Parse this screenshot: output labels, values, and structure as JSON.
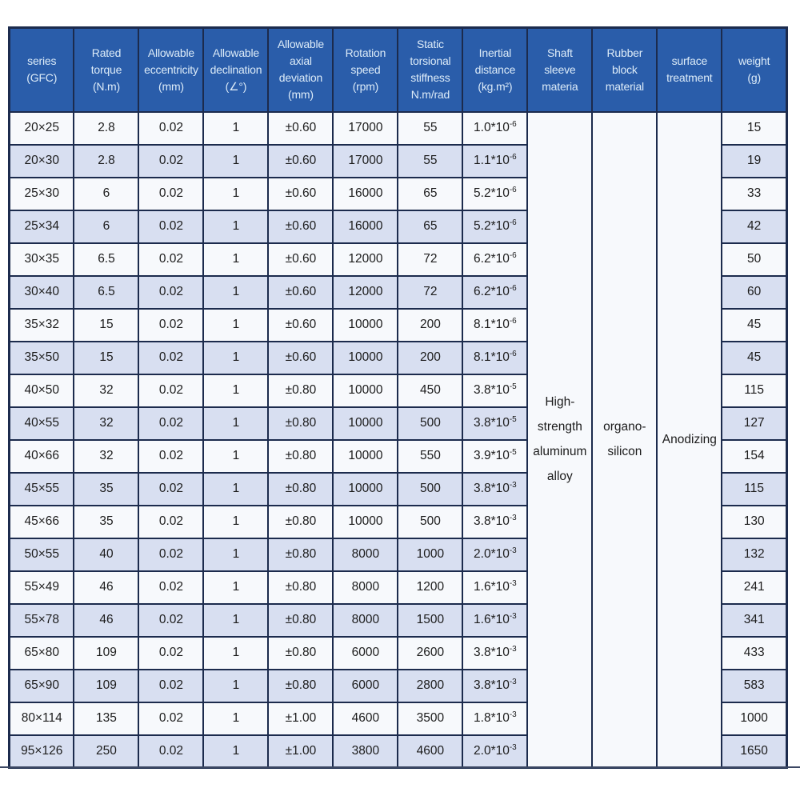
{
  "colors": {
    "header_bg": "#2a5daa",
    "border": "#1c2b4d",
    "row_odd": "#f7f9fc",
    "row_even": "#d8dff1",
    "header_text": "#dcebf8",
    "body_text": "#1c1c1c"
  },
  "table": {
    "headers": [
      {
        "id": "series",
        "lines": [
          "series",
          "(GFC)"
        ]
      },
      {
        "id": "rated-torque",
        "lines": [
          "Rated",
          "torque",
          "(N.m)"
        ]
      },
      {
        "id": "allowable-eccentricity",
        "lines": [
          "Allowable",
          "eccentricity",
          "(mm)"
        ]
      },
      {
        "id": "allowable-declination",
        "lines": [
          "Allowable",
          "declination",
          "(∠°)"
        ]
      },
      {
        "id": "allowable-axial-deviation",
        "lines": [
          "Allowable",
          "axial",
          "deviation",
          "(mm)"
        ]
      },
      {
        "id": "rotation-speed",
        "lines": [
          "Rotation",
          "speed",
          "(rpm)"
        ]
      },
      {
        "id": "static-torsional-stiffness",
        "lines": [
          "Static",
          "torsional",
          "stiffness",
          "N.m/rad"
        ]
      },
      {
        "id": "inertial-distance",
        "lines": [
          "Inertial",
          "distance",
          "(kg.m²)"
        ]
      },
      {
        "id": "shaft-sleeve-material",
        "lines": [
          "Shaft",
          "sleeve",
          "materia"
        ]
      },
      {
        "id": "rubber-block-material",
        "lines": [
          "Rubber",
          "block",
          "material"
        ]
      },
      {
        "id": "surface-treatment",
        "lines": [
          "surface",
          "treatment"
        ]
      },
      {
        "id": "weight",
        "lines": [
          "weight",
          "(g)"
        ]
      }
    ],
    "merged": {
      "shaft_sleeve": [
        "High-",
        "strength",
        "aluminum",
        "alloy"
      ],
      "rubber_block": [
        "organo-",
        "silicon"
      ],
      "surface_treatment": [
        "Anodizing"
      ]
    },
    "rows": [
      {
        "series": "20×25",
        "torque": "2.8",
        "eccentricity": "0.02",
        "declination": "1",
        "axial": "±0.60",
        "speed": "17000",
        "stiffness": "55",
        "inertia_base": "1.0*10",
        "inertia_exp": "-6",
        "weight": "15"
      },
      {
        "series": "20×30",
        "torque": "2.8",
        "eccentricity": "0.02",
        "declination": "1",
        "axial": "±0.60",
        "speed": "17000",
        "stiffness": "55",
        "inertia_base": "1.1*10",
        "inertia_exp": "-6",
        "weight": "19"
      },
      {
        "series": "25×30",
        "torque": "6",
        "eccentricity": "0.02",
        "declination": "1",
        "axial": "±0.60",
        "speed": "16000",
        "stiffness": "65",
        "inertia_base": "5.2*10",
        "inertia_exp": "-6",
        "weight": "33"
      },
      {
        "series": "25×34",
        "torque": "6",
        "eccentricity": "0.02",
        "declination": "1",
        "axial": "±0.60",
        "speed": "16000",
        "stiffness": "65",
        "inertia_base": "5.2*10",
        "inertia_exp": "-6",
        "weight": "42"
      },
      {
        "series": "30×35",
        "torque": "6.5",
        "eccentricity": "0.02",
        "declination": "1",
        "axial": "±0.60",
        "speed": "12000",
        "stiffness": "72",
        "inertia_base": "6.2*10",
        "inertia_exp": "-6",
        "weight": "50"
      },
      {
        "series": "30×40",
        "torque": "6.5",
        "eccentricity": "0.02",
        "declination": "1",
        "axial": "±0.60",
        "speed": "12000",
        "stiffness": "72",
        "inertia_base": "6.2*10",
        "inertia_exp": "-6",
        "weight": "60"
      },
      {
        "series": "35×32",
        "torque": "15",
        "eccentricity": "0.02",
        "declination": "1",
        "axial": "±0.60",
        "speed": "10000",
        "stiffness": "200",
        "inertia_base": "8.1*10",
        "inertia_exp": "-6",
        "weight": "45"
      },
      {
        "series": "35×50",
        "torque": "15",
        "eccentricity": "0.02",
        "declination": "1",
        "axial": "±0.60",
        "speed": "10000",
        "stiffness": "200",
        "inertia_base": "8.1*10",
        "inertia_exp": "-6",
        "weight": "45"
      },
      {
        "series": "40×50",
        "torque": "32",
        "eccentricity": "0.02",
        "declination": "1",
        "axial": "±0.80",
        "speed": "10000",
        "stiffness": "450",
        "inertia_base": "3.8*10",
        "inertia_exp": "-5",
        "weight": "115"
      },
      {
        "series": "40×55",
        "torque": "32",
        "eccentricity": "0.02",
        "declination": "1",
        "axial": "±0.80",
        "speed": "10000",
        "stiffness": "500",
        "inertia_base": "3.8*10",
        "inertia_exp": "-5",
        "weight": "127"
      },
      {
        "series": "40×66",
        "torque": "32",
        "eccentricity": "0.02",
        "declination": "1",
        "axial": "±0.80",
        "speed": "10000",
        "stiffness": "550",
        "inertia_base": "3.9*10",
        "inertia_exp": "-5",
        "weight": "154"
      },
      {
        "series": "45×55",
        "torque": "35",
        "eccentricity": "0.02",
        "declination": "1",
        "axial": "±0.80",
        "speed": "10000",
        "stiffness": "500",
        "inertia_base": "3.8*10",
        "inertia_exp": "-3",
        "weight": "115"
      },
      {
        "series": "45×66",
        "torque": "35",
        "eccentricity": "0.02",
        "declination": "1",
        "axial": "±0.80",
        "speed": "10000",
        "stiffness": "500",
        "inertia_base": "3.8*10",
        "inertia_exp": "-3",
        "weight": "130"
      },
      {
        "series": "50×55",
        "torque": "40",
        "eccentricity": "0.02",
        "declination": "1",
        "axial": "±0.80",
        "speed": "8000",
        "stiffness": "1000",
        "inertia_base": "2.0*10",
        "inertia_exp": "-3",
        "weight": "132"
      },
      {
        "series": "55×49",
        "torque": "46",
        "eccentricity": "0.02",
        "declination": "1",
        "axial": "±0.80",
        "speed": "8000",
        "stiffness": "1200",
        "inertia_base": "1.6*10",
        "inertia_exp": "-3",
        "weight": "241"
      },
      {
        "series": "55×78",
        "torque": "46",
        "eccentricity": "0.02",
        "declination": "1",
        "axial": "±0.80",
        "speed": "8000",
        "stiffness": "1500",
        "inertia_base": "1.6*10",
        "inertia_exp": "-3",
        "weight": "341"
      },
      {
        "series": "65×80",
        "torque": "109",
        "eccentricity": "0.02",
        "declination": "1",
        "axial": "±0.80",
        "speed": "6000",
        "stiffness": "2600",
        "inertia_base": "3.8*10",
        "inertia_exp": "-3",
        "weight": "433"
      },
      {
        "series": "65×90",
        "torque": "109",
        "eccentricity": "0.02",
        "declination": "1",
        "axial": "±0.80",
        "speed": "6000",
        "stiffness": "2800",
        "inertia_base": "3.8*10",
        "inertia_exp": "-3",
        "weight": "583"
      },
      {
        "series": "80×114",
        "torque": "135",
        "eccentricity": "0.02",
        "declination": "1",
        "axial": "±1.00",
        "speed": "4600",
        "stiffness": "3500",
        "inertia_base": "1.8*10",
        "inertia_exp": "-3",
        "weight": "1000"
      },
      {
        "series": "95×126",
        "torque": "250",
        "eccentricity": "0.02",
        "declination": "1",
        "axial": "±1.00",
        "speed": "3800",
        "stiffness": "4600",
        "inertia_base": "2.0*10",
        "inertia_exp": "-3",
        "weight": "1650"
      }
    ]
  }
}
